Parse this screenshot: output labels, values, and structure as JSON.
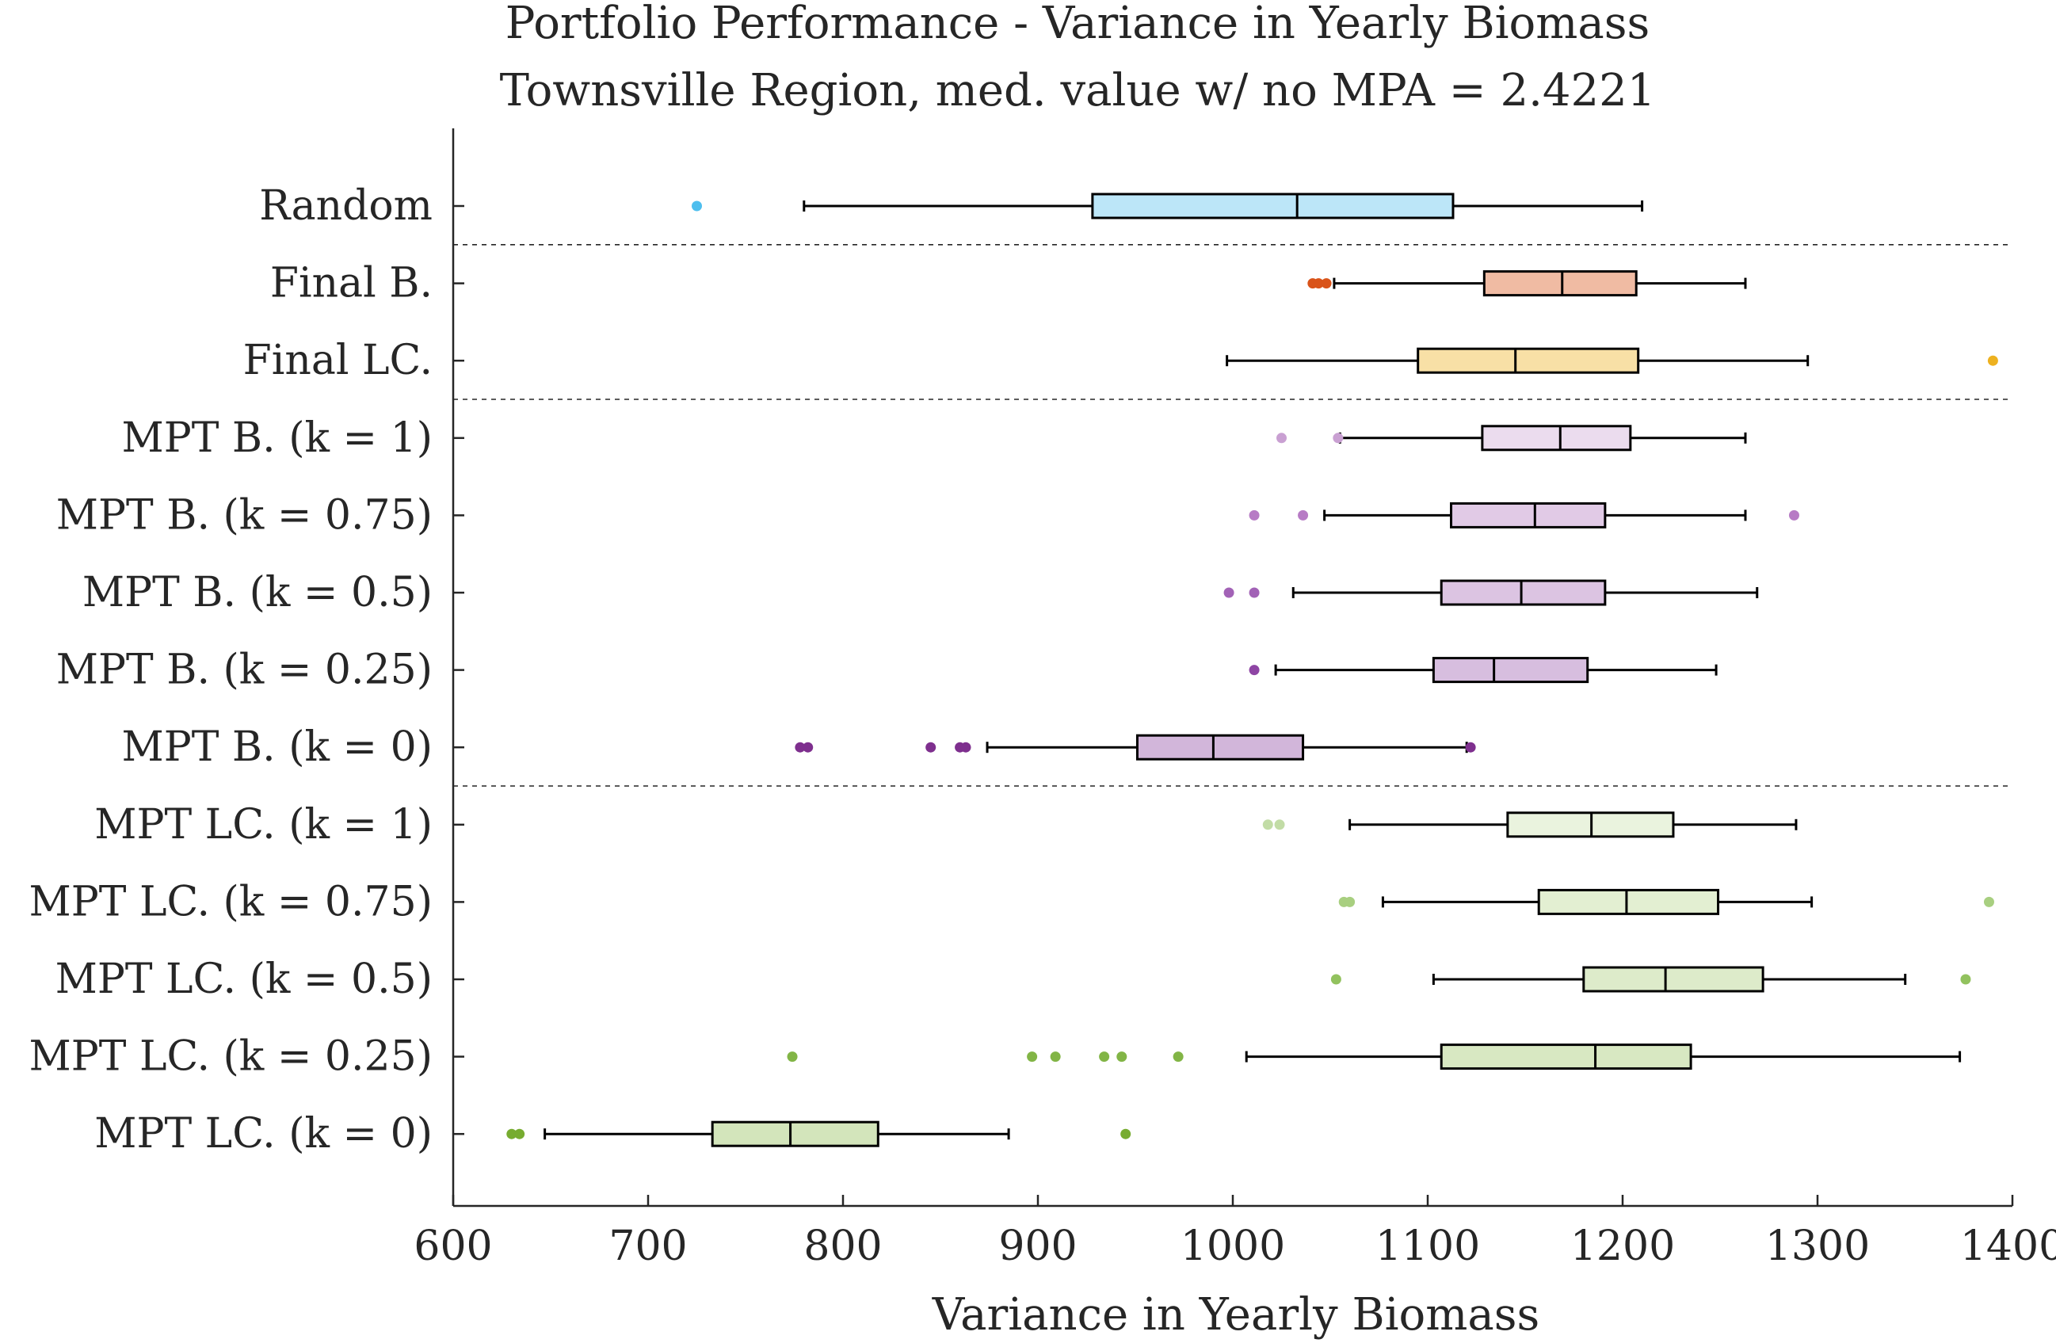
{
  "chart_data": {
    "type": "boxplot",
    "orientation": "horizontal",
    "title": "Portfolio Performance - Variance in Yearly Biomass",
    "subtitle": "Townsville Region, med. value w/ no MPA = 2.4221",
    "xlabel": "Variance in Yearly Biomass",
    "ylabel": "",
    "xlim": [
      600,
      1400
    ],
    "xticks": [
      600,
      700,
      800,
      900,
      1000,
      1100,
      1200,
      1300,
      1400
    ],
    "xtick_labels": [
      "600",
      "700",
      "800",
      "900",
      "1000",
      "1100",
      "1200",
      "1300",
      "1400"
    ],
    "grid": false,
    "group_separators_after": [
      0,
      2,
      7
    ],
    "categories": [
      {
        "label": "Random",
        "color": "#4DBEEE",
        "fill": "#BCE6F8",
        "whisker_low": 780,
        "q1": 928,
        "median": 1033,
        "q3": 1113,
        "whisker_high": 1210,
        "outliers": [
          725
        ]
      },
      {
        "label": "Final B.",
        "color": "#D95319",
        "fill": "#F0BBA3",
        "whisker_low": 1052,
        "q1": 1129,
        "median": 1169,
        "q3": 1207,
        "whisker_high": 1263,
        "outliers": [
          1041,
          1044,
          1048
        ]
      },
      {
        "label": "Final LC.",
        "color": "#EDB120",
        "fill": "#F8E0A6",
        "whisker_low": 997,
        "q1": 1095,
        "median": 1145,
        "q3": 1208,
        "whisker_high": 1295,
        "outliers": [
          1390
        ]
      },
      {
        "label": "MPT B. (k = 1)",
        "color": "#C9A0D2",
        "fill": "#EBDCEE",
        "whisker_low": 1055,
        "q1": 1128,
        "median": 1168,
        "q3": 1204,
        "whisker_high": 1263,
        "outliers": [
          1025,
          1054
        ]
      },
      {
        "label": "MPT B. (k = 0.75)",
        "color": "#B77BC5",
        "fill": "#E1CAE6",
        "whisker_low": 1047,
        "q1": 1112,
        "median": 1155,
        "q3": 1191,
        "whisker_high": 1263,
        "outliers": [
          1011,
          1036,
          1288
        ]
      },
      {
        "label": "MPT B. (k = 0.5)",
        "color": "#A262B6",
        "fill": "#DCC4E2",
        "whisker_low": 1031,
        "q1": 1107,
        "median": 1148,
        "q3": 1191,
        "whisker_high": 1269,
        "outliers": [
          998,
          1011
        ]
      },
      {
        "label": "MPT B. (k = 0.25)",
        "color": "#8E45A4",
        "fill": "#D7BEDF",
        "whisker_low": 1022,
        "q1": 1103,
        "median": 1134,
        "q3": 1182,
        "whisker_high": 1248,
        "outliers": [
          1011
        ]
      },
      {
        "label": "MPT B. (k = 0)",
        "color": "#7E2F8E",
        "fill": "#D2B6DA",
        "whisker_low": 874,
        "q1": 951,
        "median": 990,
        "q3": 1036,
        "whisker_high": 1120,
        "outliers": [
          778,
          782,
          845,
          860,
          863,
          1122
        ]
      },
      {
        "label": "MPT LC. (k = 1)",
        "color": "#C2DCA6",
        "fill": "#EAF3DE",
        "whisker_low": 1060,
        "q1": 1141,
        "median": 1184,
        "q3": 1226,
        "whisker_high": 1289,
        "outliers": [
          1018,
          1024
        ]
      },
      {
        "label": "MPT LC. (k = 0.75)",
        "color": "#A8CF80",
        "fill": "#E3EFD2",
        "whisker_low": 1077,
        "q1": 1157,
        "median": 1202,
        "q3": 1249,
        "whisker_high": 1297,
        "outliers": [
          1057,
          1060,
          1388
        ]
      },
      {
        "label": "MPT LC. (k = 0.5)",
        "color": "#92C25E",
        "fill": "#DDEBCA",
        "whisker_low": 1103,
        "q1": 1180,
        "median": 1222,
        "q3": 1272,
        "whisker_high": 1345,
        "outliers": [
          1053,
          1376
        ]
      },
      {
        "label": "MPT LC. (k = 0.25)",
        "color": "#82B546",
        "fill": "#D8E8C2",
        "whisker_low": 1007,
        "q1": 1107,
        "median": 1186,
        "q3": 1235,
        "whisker_high": 1373,
        "outliers": [
          774,
          897,
          909,
          934,
          943,
          972
        ]
      },
      {
        "label": "MPT LC. (k = 0)",
        "color": "#77AC30",
        "fill": "#D3E5BB",
        "whisker_low": 647,
        "q1": 733,
        "median": 773,
        "q3": 818,
        "whisker_high": 885,
        "outliers": [
          630,
          634,
          945
        ]
      }
    ]
  }
}
